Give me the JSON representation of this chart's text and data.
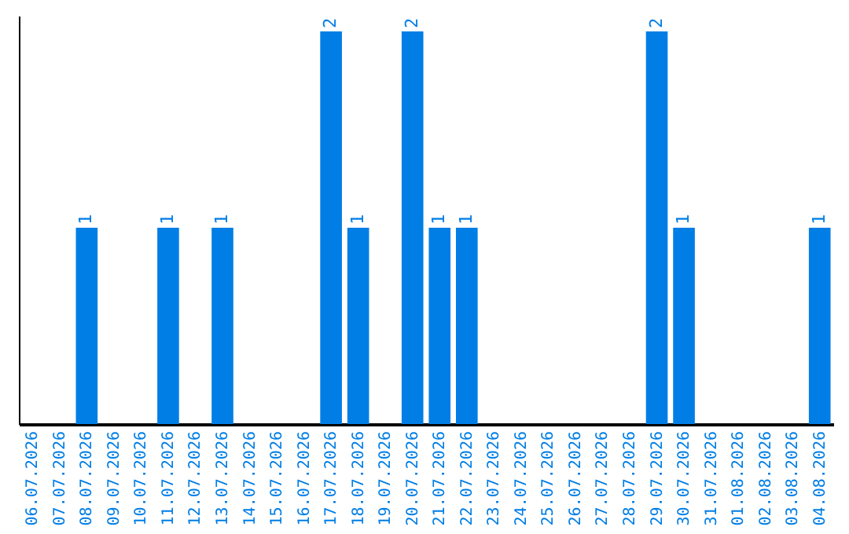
{
  "chart_data": {
    "type": "bar",
    "categories": [
      "06.07.2026",
      "07.07.2026",
      "08.07.2026",
      "09.07.2026",
      "10.07.2026",
      "11.07.2026",
      "12.07.2026",
      "13.07.2026",
      "14.07.2026",
      "15.07.2026",
      "16.07.2026",
      "17.07.2026",
      "18.07.2026",
      "19.07.2026",
      "20.07.2026",
      "21.07.2026",
      "22.07.2026",
      "23.07.2026",
      "24.07.2026",
      "25.07.2026",
      "26.07.2026",
      "27.07.2026",
      "28.07.2026",
      "29.07.2026",
      "30.07.2026",
      "31.07.2026",
      "01.08.2026",
      "02.08.2026",
      "03.08.2026",
      "04.08.2026"
    ],
    "values": [
      null,
      null,
      1,
      null,
      null,
      1,
      null,
      1,
      null,
      null,
      null,
      2,
      1,
      null,
      2,
      1,
      1,
      null,
      null,
      null,
      null,
      null,
      null,
      2,
      1,
      null,
      null,
      null,
      null,
      1
    ],
    "color": "#007ee5",
    "ylim": [
      0,
      2.08
    ],
    "data_labels": true,
    "tick_labels": "x",
    "grid": false
  }
}
